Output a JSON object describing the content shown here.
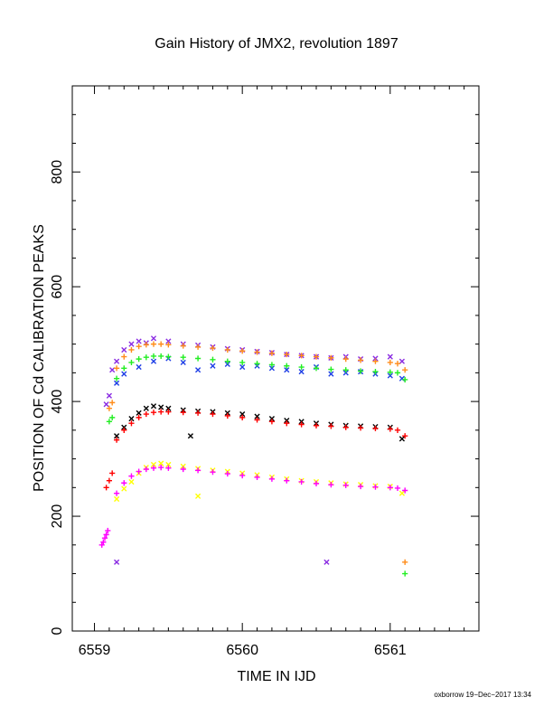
{
  "chart_data": {
    "type": "scatter",
    "title": "Gain History of JMX2, revolution 1897",
    "xlabel": "TIME IN IJD",
    "ylabel": "POSITION OF Cd CALIBRATION PEAKS",
    "xlim": [
      6558.85,
      6561.6
    ],
    "ylim": [
      0,
      950
    ],
    "x_ticks": [
      6559,
      6560,
      6561
    ],
    "x_tick_labels": [
      "6559",
      "6560",
      "6561"
    ],
    "y_ticks": [
      0,
      200,
      400,
      600,
      800
    ],
    "y_tick_labels": [
      "0",
      "200",
      "400",
      "600",
      "800"
    ],
    "grid": false,
    "legend": "none",
    "footer": "oxborrow 19−Dec−2017 13:34",
    "colors": {
      "purple": "#8a2be2",
      "blue": "#1f3fe6",
      "orange": "#ff8c1a",
      "green": "#22ee22",
      "black": "#000000",
      "red": "#ff0000",
      "yellow": "#ffff00",
      "magenta": "#ff00ff"
    },
    "series": [
      {
        "color": "purple",
        "marker": "x",
        "x": [
          6559.08,
          6559.1,
          6559.12,
          6559.15,
          6559.2,
          6559.25,
          6559.3,
          6559.35,
          6559.4,
          6559.5,
          6559.6,
          6559.7,
          6559.8,
          6559.9,
          6560.0,
          6560.1,
          6560.2,
          6560.3,
          6560.4,
          6560.5,
          6560.6,
          6560.7,
          6560.8,
          6560.9,
          6561.0,
          6561.08,
          6559.15,
          6560.57
        ],
        "y": [
          395,
          410,
          455,
          470,
          490,
          500,
          505,
          502,
          510,
          505,
          500,
          498,
          495,
          492,
          490,
          487,
          485,
          482,
          480,
          478,
          476,
          478,
          474,
          475,
          478,
          470,
          120,
          120
        ]
      },
      {
        "color": "blue",
        "marker": "x",
        "x": [
          6559.15,
          6559.2,
          6559.3,
          6559.4,
          6559.5,
          6559.6,
          6559.7,
          6559.8,
          6559.9,
          6560.0,
          6560.1,
          6560.2,
          6560.3,
          6560.4,
          6560.5,
          6560.6,
          6560.7,
          6560.8,
          6560.9,
          6561.0,
          6561.08
        ],
        "y": [
          432,
          448,
          460,
          470,
          475,
          468,
          455,
          462,
          465,
          460,
          462,
          458,
          455,
          452,
          460,
          448,
          450,
          452,
          448,
          445,
          440
        ]
      },
      {
        "color": "orange",
        "marker": "+",
        "x": [
          6559.1,
          6559.12,
          6559.15,
          6559.2,
          6559.25,
          6559.3,
          6559.35,
          6559.4,
          6559.45,
          6559.5,
          6559.6,
          6559.7,
          6559.8,
          6559.9,
          6560.0,
          6560.1,
          6560.2,
          6560.3,
          6560.4,
          6560.5,
          6560.6,
          6560.7,
          6560.8,
          6560.9,
          6561.0,
          6561.05,
          6561.1,
          6561.1
        ],
        "y": [
          388,
          398,
          458,
          478,
          490,
          496,
          499,
          500,
          500,
          499,
          497,
          495,
          493,
          490,
          488,
          486,
          484,
          482,
          480,
          478,
          476,
          474,
          472,
          470,
          468,
          466,
          455,
          120
        ]
      },
      {
        "color": "green",
        "marker": "+",
        "x": [
          6559.1,
          6559.12,
          6559.15,
          6559.2,
          6559.25,
          6559.3,
          6559.35,
          6559.4,
          6559.45,
          6559.5,
          6559.6,
          6559.7,
          6559.8,
          6559.9,
          6560.0,
          6560.1,
          6560.2,
          6560.3,
          6560.4,
          6560.5,
          6560.6,
          6560.7,
          6560.8,
          6560.9,
          6561.0,
          6561.05,
          6561.1,
          6561.1
        ],
        "y": [
          365,
          372,
          440,
          458,
          468,
          474,
          477,
          479,
          479,
          478,
          477,
          475,
          473,
          470,
          468,
          466,
          464,
          462,
          460,
          458,
          456,
          455,
          453,
          452,
          451,
          450,
          438,
          100
        ]
      },
      {
        "color": "black",
        "marker": "x",
        "x": [
          6559.15,
          6559.2,
          6559.25,
          6559.3,
          6559.35,
          6559.4,
          6559.45,
          6559.5,
          6559.6,
          6559.7,
          6559.8,
          6559.9,
          6560.0,
          6560.1,
          6560.2,
          6560.3,
          6560.4,
          6560.5,
          6560.6,
          6560.7,
          6560.8,
          6560.9,
          6561.0,
          6561.08,
          6559.65
        ],
        "y": [
          340,
          355,
          370,
          380,
          388,
          392,
          390,
          388,
          385,
          383,
          382,
          380,
          378,
          374,
          370,
          367,
          365,
          362,
          360,
          358,
          357,
          356,
          355,
          335,
          340
        ]
      },
      {
        "color": "red",
        "marker": "+",
        "x": [
          6559.08,
          6559.1,
          6559.12,
          6559.15,
          6559.2,
          6559.25,
          6559.3,
          6559.35,
          6559.4,
          6559.45,
          6559.5,
          6559.6,
          6559.7,
          6559.8,
          6559.9,
          6560.0,
          6560.1,
          6560.2,
          6560.3,
          6560.4,
          6560.5,
          6560.6,
          6560.7,
          6560.8,
          6560.9,
          6561.0,
          6561.05,
          6561.1
        ],
        "y": [
          250,
          262,
          275,
          333,
          350,
          362,
          372,
          378,
          381,
          382,
          382,
          381,
          380,
          378,
          375,
          372,
          368,
          365,
          362,
          360,
          358,
          357,
          355,
          354,
          353,
          352,
          350,
          340
        ]
      },
      {
        "color": "yellow",
        "marker": "x",
        "x": [
          6559.15,
          6559.2,
          6559.25,
          6559.3,
          6559.35,
          6559.4,
          6559.45,
          6559.5,
          6559.6,
          6559.7,
          6559.8,
          6559.9,
          6560.0,
          6560.1,
          6560.2,
          6560.3,
          6560.4,
          6560.5,
          6560.6,
          6560.7,
          6560.8,
          6560.9,
          6561.0,
          6561.08,
          6559.7
        ],
        "y": [
          230,
          248,
          260,
          275,
          285,
          290,
          292,
          290,
          287,
          283,
          280,
          278,
          275,
          272,
          268,
          265,
          262,
          260,
          258,
          256,
          255,
          253,
          252,
          240,
          235
        ]
      },
      {
        "color": "magenta",
        "marker": "+",
        "x": [
          6559.05,
          6559.06,
          6559.07,
          6559.08,
          6559.09,
          6559.15,
          6559.2,
          6559.25,
          6559.3,
          6559.35,
          6559.4,
          6559.45,
          6559.5,
          6559.6,
          6559.7,
          6559.8,
          6559.9,
          6560.0,
          6560.1,
          6560.2,
          6560.3,
          6560.4,
          6560.5,
          6560.6,
          6560.7,
          6560.8,
          6560.9,
          6561.0,
          6561.05,
          6561.1
        ],
        "y": [
          150,
          155,
          162,
          168,
          175,
          240,
          258,
          270,
          278,
          282,
          284,
          285,
          284,
          282,
          280,
          277,
          274,
          271,
          268,
          265,
          262,
          260,
          257,
          255,
          254,
          252,
          251,
          250,
          249,
          245
        ]
      }
    ]
  }
}
